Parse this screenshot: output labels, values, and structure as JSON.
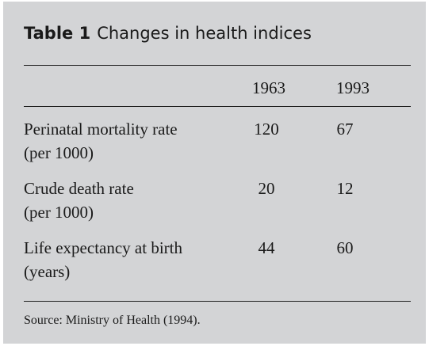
{
  "table": {
    "label": "Table 1",
    "caption": "Changes in health indices",
    "columns": [
      "1963",
      "1993"
    ],
    "rows": [
      {
        "label_line1": "Perinatal mortality rate",
        "label_line2": "(per 1000)",
        "values": [
          "120",
          "67"
        ]
      },
      {
        "label_line1": "Crude death rate",
        "label_line2": "(per 1000)",
        "values": [
          "20",
          "12"
        ]
      },
      {
        "label_line1": "Life expectancy at birth",
        "label_line2": "(years)",
        "values": [
          "44",
          "60"
        ]
      }
    ],
    "source": "Source: Ministry of Health (1994)."
  },
  "colors": {
    "panel_background": "#d3d4d6",
    "text": "#1a1a1a",
    "rule": "#1f1f1f"
  }
}
